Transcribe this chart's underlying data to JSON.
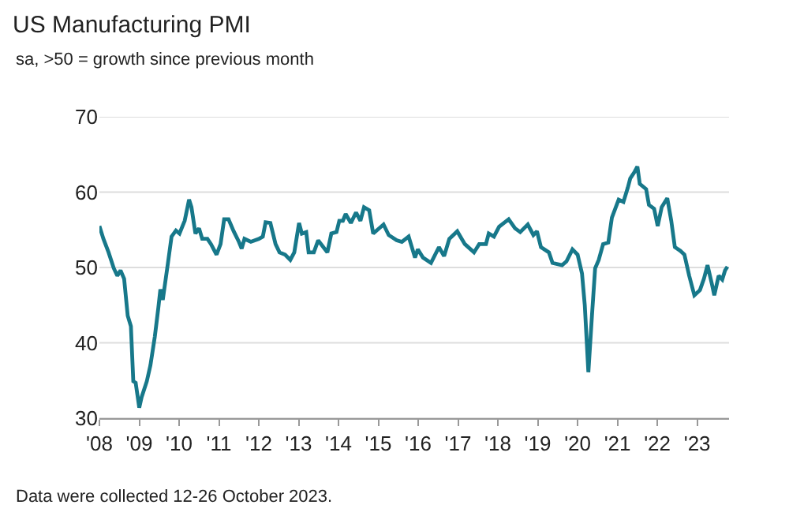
{
  "chart_data": {
    "type": "line",
    "title": "US Manufacturing PMI",
    "subtitle": "sa, >50 = growth since previous month",
    "annotations": [
      "Data were collected 12-26 October 2023."
    ],
    "x": [
      2008.0,
      2008.1,
      2008.23,
      2008.36,
      2008.45,
      2008.53,
      2008.62,
      2008.71,
      2008.79,
      2008.85,
      2008.91,
      2009.0,
      2009.06,
      2009.19,
      2009.28,
      2009.39,
      2009.48,
      2009.53,
      2009.59,
      2009.72,
      2009.81,
      2009.92,
      2010.01,
      2010.14,
      2010.25,
      2010.31,
      2010.41,
      2010.5,
      2010.58,
      2010.71,
      2010.8,
      2010.94,
      2011.04,
      2011.13,
      2011.24,
      2011.37,
      2011.5,
      2011.57,
      2011.64,
      2011.8,
      2012.0,
      2012.1,
      2012.17,
      2012.29,
      2012.42,
      2012.52,
      2012.66,
      2012.79,
      2012.89,
      2013.01,
      2013.08,
      2013.19,
      2013.25,
      2013.38,
      2013.49,
      2013.62,
      2013.72,
      2013.82,
      2013.95,
      2014.02,
      2014.11,
      2014.18,
      2014.31,
      2014.44,
      2014.55,
      2014.64,
      2014.77,
      2014.87,
      2015.13,
      2015.26,
      2015.46,
      2015.59,
      2015.76,
      2015.92,
      2015.99,
      2016.12,
      2016.32,
      2016.52,
      2016.65,
      2016.78,
      2016.98,
      2017.17,
      2017.4,
      2017.53,
      2017.7,
      2017.77,
      2017.9,
      2018.03,
      2018.27,
      2018.43,
      2018.56,
      2018.75,
      2018.89,
      2018.98,
      2019.08,
      2019.28,
      2019.37,
      2019.61,
      2019.72,
      2019.87,
      2020.0,
      2020.11,
      2020.18,
      2020.27,
      2020.36,
      2020.44,
      2020.53,
      2020.64,
      2020.77,
      2020.86,
      2021.03,
      2021.15,
      2021.26,
      2021.32,
      2021.43,
      2021.5,
      2021.56,
      2021.72,
      2021.79,
      2021.92,
      2022.01,
      2022.11,
      2022.25,
      2022.35,
      2022.44,
      2022.58,
      2022.68,
      2022.8,
      2022.93,
      2023.07,
      2023.17,
      2023.26,
      2023.37,
      2023.43,
      2023.54,
      2023.63,
      2023.7,
      2023.76
    ],
    "series": [
      {
        "color": "#17788a",
        "values": [
          55.5,
          53.8,
          52,
          49.9,
          48.9,
          49.6,
          48.5,
          43.6,
          42.2,
          34.9,
          34.7,
          31.4,
          32.8,
          34.9,
          37,
          40.8,
          44.7,
          47.1,
          45.7,
          50.6,
          54.1,
          54.9,
          54.5,
          56.2,
          59.0,
          58,
          54.5,
          55.2,
          53.8,
          53.8,
          53.1,
          51.7,
          53.1,
          56.4,
          56.4,
          54.8,
          53.4,
          52.5,
          53.8,
          53.4,
          53.8,
          54.1,
          56,
          55.9,
          53.1,
          52,
          51.7,
          51,
          52,
          55.9,
          54.5,
          54.7,
          52,
          52,
          53.6,
          52.7,
          52,
          54.5,
          54.7,
          56.2,
          56.2,
          57.1,
          55.9,
          57.3,
          56.2,
          58,
          57.6,
          54.5,
          55.7,
          54.3,
          53.6,
          53.4,
          54.1,
          51.3,
          52.4,
          51.3,
          50.6,
          52.7,
          51.5,
          53.8,
          54.8,
          53.1,
          52,
          53.1,
          53.1,
          54.5,
          54.1,
          55.4,
          56.4,
          55.2,
          54.7,
          55.7,
          54.3,
          54.8,
          52.7,
          52,
          50.6,
          50.3,
          50.8,
          52.4,
          51.7,
          49.2,
          45,
          36.1,
          43.6,
          49.9,
          51,
          53.1,
          53.3,
          56.6,
          59,
          58.7,
          60.6,
          61.8,
          62.7,
          63.4,
          61.1,
          60.4,
          58.3,
          57.8,
          55.5,
          58,
          59.2,
          56.2,
          52.7,
          52.2,
          51.7,
          48.9,
          46.3,
          47,
          48.5,
          50.3,
          47.8,
          46.3,
          48.9,
          48.4,
          49.6,
          50.1
        ]
      }
    ],
    "xlim": [
      2008,
      2023.8
    ],
    "xticks": [
      {
        "value": 2008,
        "label": "'08"
      },
      {
        "value": 2009,
        "label": "'09"
      },
      {
        "value": 2010,
        "label": "'10"
      },
      {
        "value": 2011,
        "label": "'11"
      },
      {
        "value": 2012,
        "label": "'12"
      },
      {
        "value": 2013,
        "label": "'13"
      },
      {
        "value": 2014,
        "label": "'14"
      },
      {
        "value": 2015,
        "label": "'15"
      },
      {
        "value": 2016,
        "label": "'16"
      },
      {
        "value": 2017,
        "label": "'17"
      },
      {
        "value": 2018,
        "label": "'18"
      },
      {
        "value": 2019,
        "label": "'19"
      },
      {
        "value": 2020,
        "label": "'20"
      },
      {
        "value": 2021,
        "label": "'21"
      },
      {
        "value": 2022,
        "label": "'22"
      },
      {
        "value": 2023,
        "label": "'23"
      }
    ],
    "ylim": [
      30,
      70
    ],
    "yticks": [
      30,
      40,
      50,
      60,
      70
    ],
    "grid": "y",
    "marker": "none",
    "line_style": "solid"
  }
}
